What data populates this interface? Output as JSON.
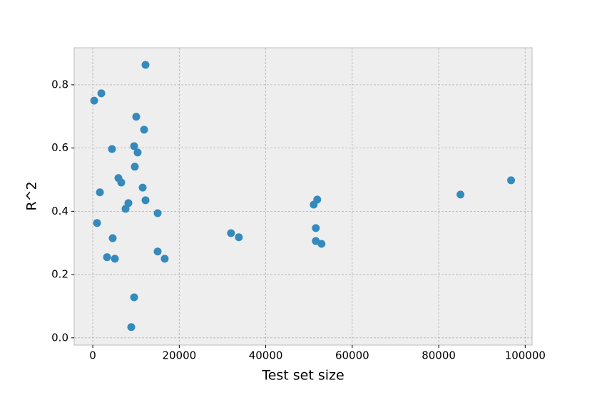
{
  "chart_data": {
    "type": "scatter",
    "x_label": "Test set size",
    "y_label": "R^2",
    "x": [
      330,
      1980,
      12200,
      10050,
      11870,
      4450,
      9560,
      10380,
      9720,
      5930,
      6590,
      1650,
      11540,
      12200,
      8240,
      7580,
      15000,
      990,
      4610,
      3300,
      5110,
      15000,
      16640,
      9560,
      8900,
      31970,
      33780,
      51910,
      51090,
      51580,
      51580,
      52900,
      85040,
      96740
    ],
    "values": [
      0.75,
      0.773,
      0.863,
      0.699,
      0.658,
      0.597,
      0.606,
      0.586,
      0.541,
      0.505,
      0.491,
      0.46,
      0.475,
      0.435,
      0.426,
      0.408,
      0.394,
      0.363,
      0.315,
      0.255,
      0.25,
      0.273,
      0.25,
      0.128,
      0.034,
      0.331,
      0.318,
      0.437,
      0.421,
      0.347,
      0.306,
      0.297,
      0.453,
      0.498
    ],
    "color": "#348abd",
    "xlim": [
      -4300,
      101600
    ],
    "ylim": [
      -0.023,
      0.917
    ],
    "xticks": [
      0,
      20000,
      40000,
      60000,
      80000,
      100000
    ],
    "yticks": [
      {
        "value": 0,
        "label": "0.0"
      },
      0.2,
      0.4,
      0.6,
      0.8
    ],
    "grid": true
  }
}
